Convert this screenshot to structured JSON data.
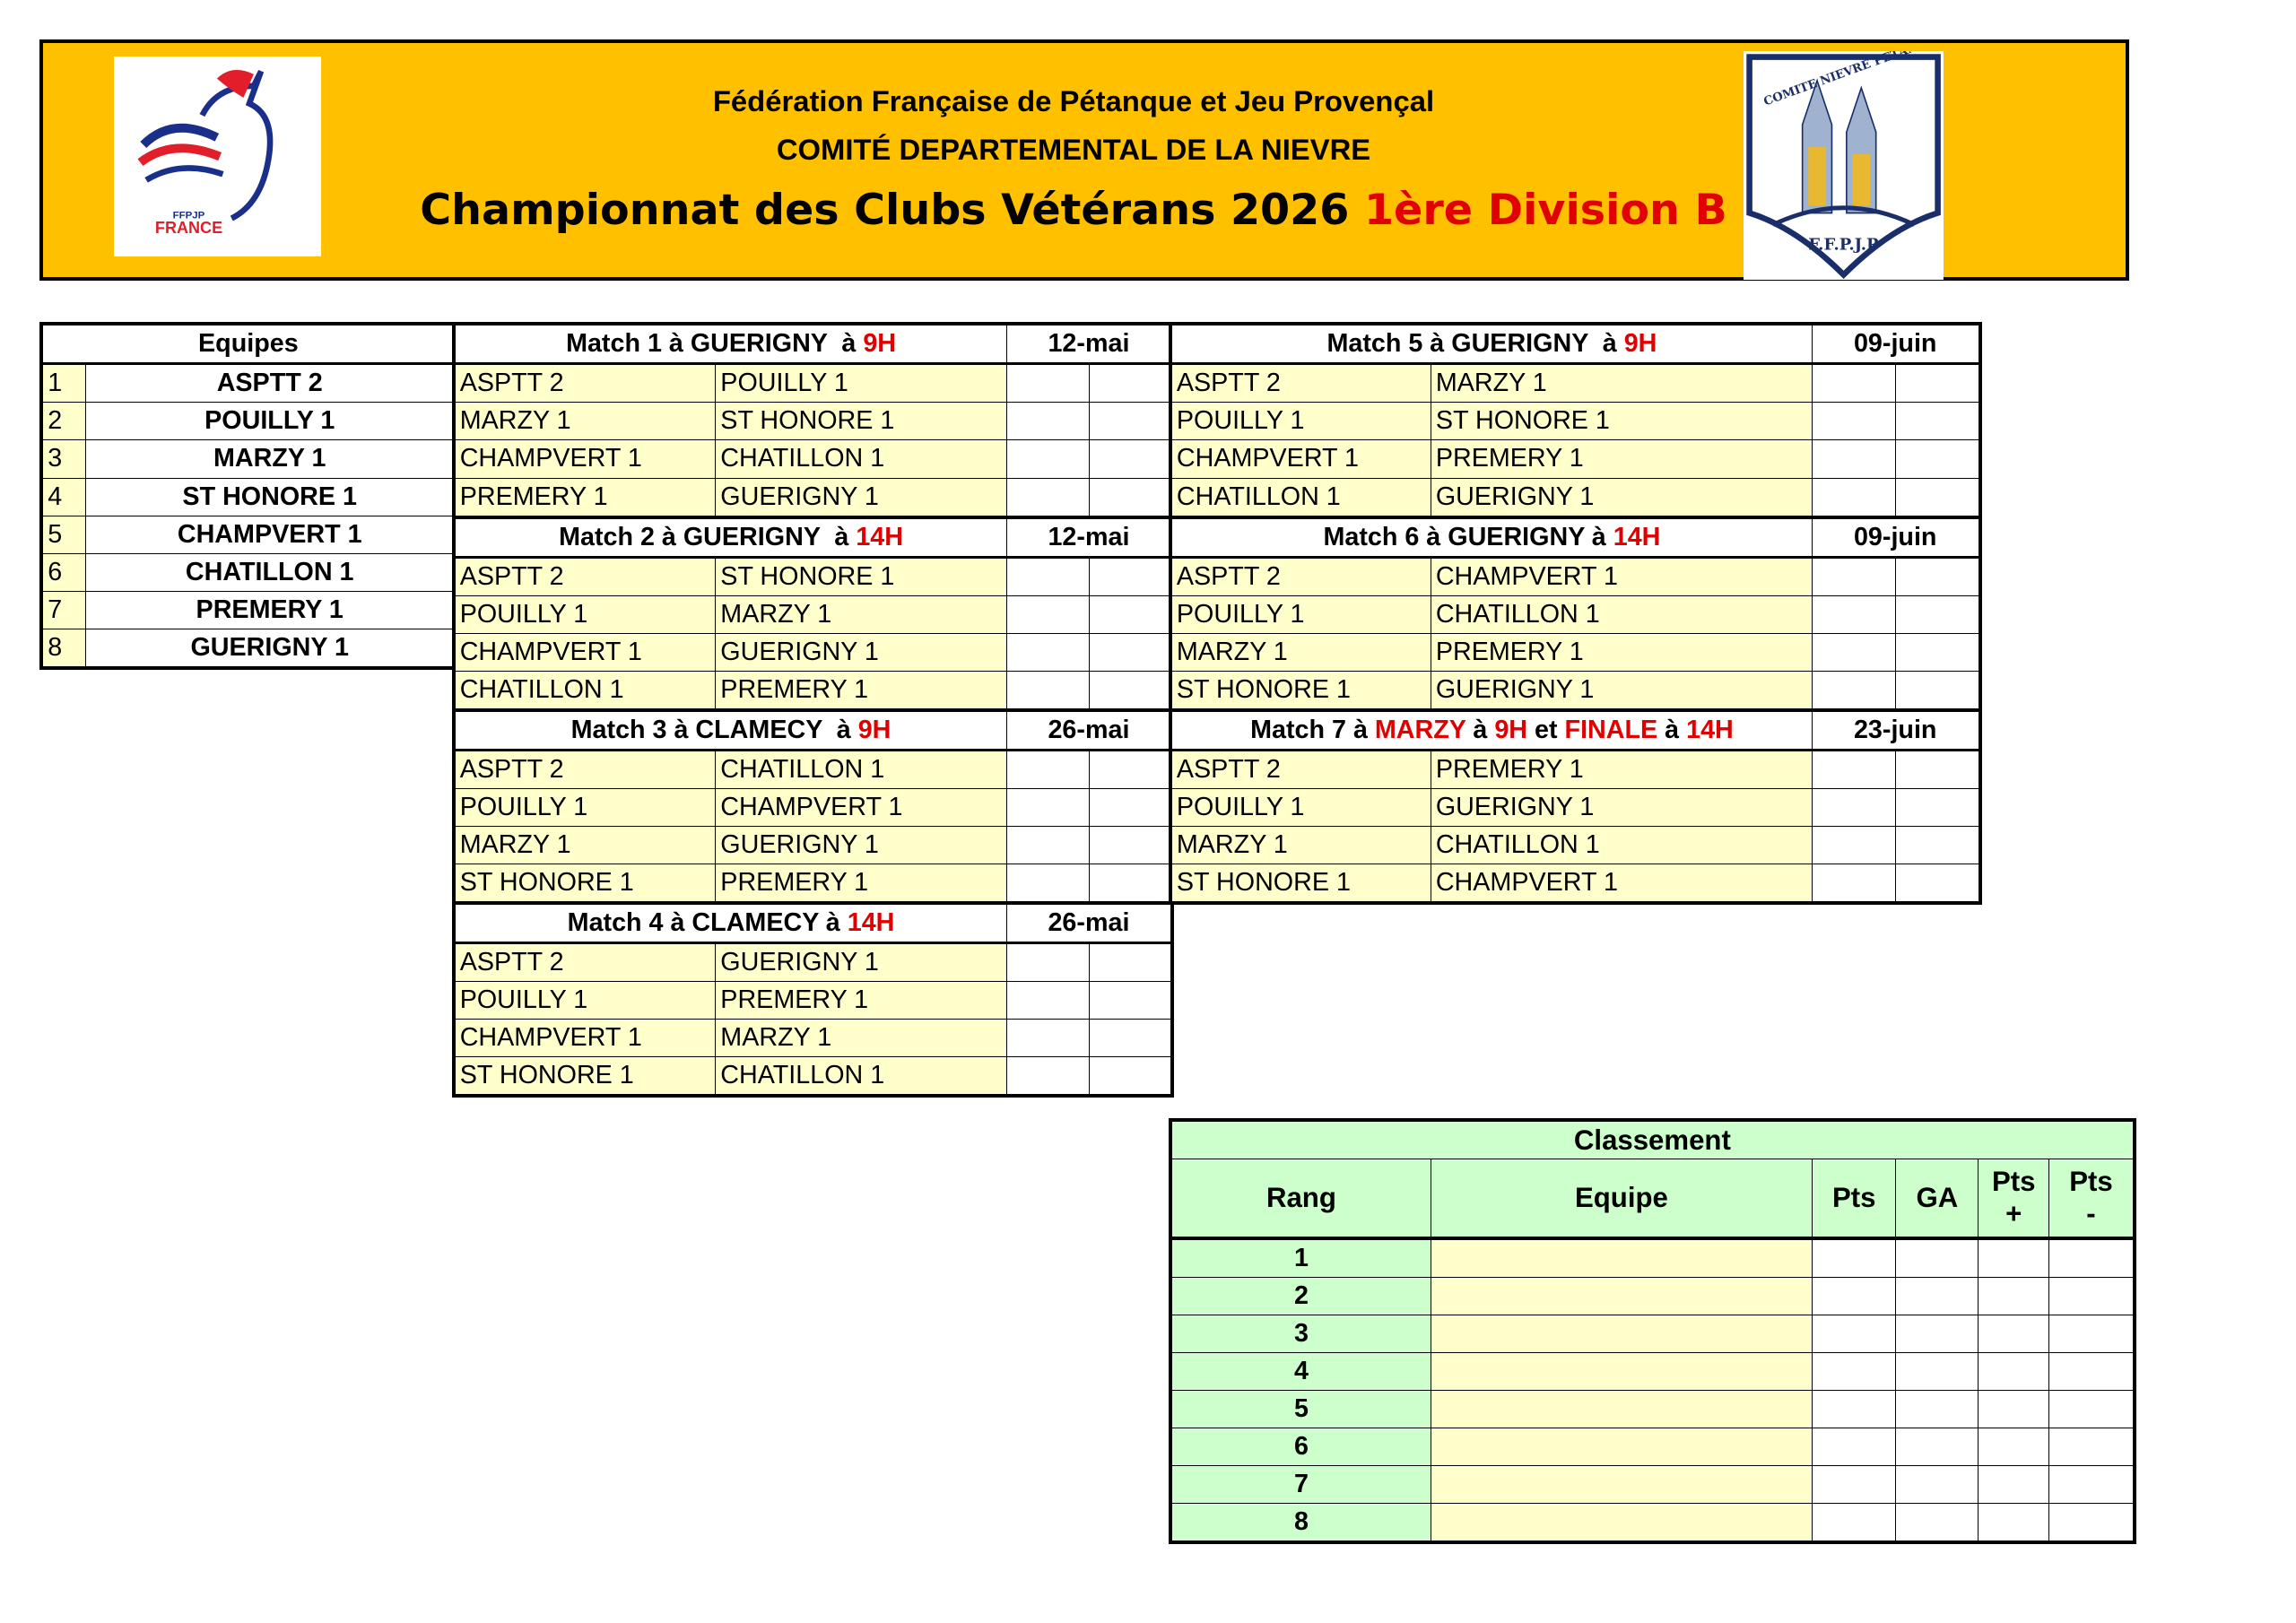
{
  "header": {
    "line1": "Fédération Française de Pétanque et Jeu Provençal",
    "line2": "COMITÉ DEPARTEMENTAL DE LA NIEVRE",
    "title_black": "Championnat des Clubs Vétérans 2026",
    "title_red": "1ère Division B",
    "logo_left": {
      "text": "FFPJP FRANCE",
      "icon": "rooster-logo"
    },
    "logo_right": {
      "text": "COMITE NIEVRE PETANQUE F.F.P.J.P",
      "icon": "shield-logo"
    }
  },
  "colors": {
    "header_bg": "#FFC000",
    "cell_yellow": "#FFFFCC",
    "classement_green": "#CCFFCC",
    "accent_red": "#E00000"
  },
  "teams": {
    "header": "Equipes",
    "items": [
      {
        "num": "1",
        "name": "ASPTT 2"
      },
      {
        "num": "2",
        "name": "POUILLY 1"
      },
      {
        "num": "3",
        "name": "MARZY 1"
      },
      {
        "num": "4",
        "name": "ST HONORE 1"
      },
      {
        "num": "5",
        "name": "CHAMPVERT 1"
      },
      {
        "num": "6",
        "name": "CHATILLON 1"
      },
      {
        "num": "7",
        "name": "PREMERY 1"
      },
      {
        "num": "8",
        "name": "GUERIGNY 1"
      }
    ]
  },
  "matches_left": [
    {
      "title": [
        {
          "t": "Match 1 à GUERIGNY  à ",
          "r": false
        },
        {
          "t": "9H",
          "r": true
        }
      ],
      "date": "12-mai",
      "games": [
        [
          "ASPTT 2",
          "POUILLY 1"
        ],
        [
          "MARZY 1",
          "ST HONORE 1"
        ],
        [
          "CHAMPVERT 1",
          "CHATILLON 1"
        ],
        [
          "PREMERY 1",
          "GUERIGNY 1"
        ]
      ]
    },
    {
      "title": [
        {
          "t": "Match 2 à GUERIGNY  à ",
          "r": false
        },
        {
          "t": "14H",
          "r": true
        }
      ],
      "date": "12-mai",
      "games": [
        [
          "ASPTT 2",
          "ST HONORE 1"
        ],
        [
          "POUILLY 1",
          "MARZY 1"
        ],
        [
          "CHAMPVERT 1",
          "GUERIGNY 1"
        ],
        [
          "CHATILLON 1",
          "PREMERY 1"
        ]
      ]
    },
    {
      "title": [
        {
          "t": "Match 3 à CLAMECY  à ",
          "r": false
        },
        {
          "t": "9H",
          "r": true
        }
      ],
      "date": "26-mai",
      "games": [
        [
          "ASPTT 2",
          "CHATILLON 1"
        ],
        [
          "POUILLY 1",
          "CHAMPVERT 1"
        ],
        [
          "MARZY 1",
          "GUERIGNY 1"
        ],
        [
          "ST HONORE 1",
          "PREMERY 1"
        ]
      ]
    },
    {
      "title": [
        {
          "t": "Match 4 à CLAMECY à ",
          "r": false
        },
        {
          "t": "14H",
          "r": true
        }
      ],
      "date": "26-mai",
      "games": [
        [
          "ASPTT 2",
          "GUERIGNY 1"
        ],
        [
          "POUILLY 1",
          "PREMERY 1"
        ],
        [
          "CHAMPVERT 1",
          "MARZY 1"
        ],
        [
          "ST HONORE 1",
          "CHATILLON 1"
        ]
      ]
    }
  ],
  "matches_right": [
    {
      "title": [
        {
          "t": "Match 5 à GUERIGNY  à ",
          "r": false
        },
        {
          "t": "9H",
          "r": true
        }
      ],
      "date": "09-juin",
      "games": [
        [
          "ASPTT 2",
          "MARZY 1"
        ],
        [
          "POUILLY 1",
          "ST HONORE 1"
        ],
        [
          "CHAMPVERT 1",
          "PREMERY 1"
        ],
        [
          "CHATILLON 1",
          "GUERIGNY 1"
        ]
      ]
    },
    {
      "title": [
        {
          "t": "Match 6 à GUERIGNY à ",
          "r": false
        },
        {
          "t": "14H",
          "r": true
        }
      ],
      "date": "09-juin",
      "games": [
        [
          "ASPTT 2",
          "CHAMPVERT 1"
        ],
        [
          "POUILLY 1",
          "CHATILLON 1"
        ],
        [
          "MARZY 1",
          "PREMERY 1"
        ],
        [
          "ST HONORE 1",
          "GUERIGNY 1"
        ]
      ]
    },
    {
      "title": [
        {
          "t": "Match 7 à ",
          "r": false
        },
        {
          "t": "MARZY",
          "r": true
        },
        {
          "t": " à ",
          "r": false
        },
        {
          "t": "9H",
          "r": true
        },
        {
          "t": " et ",
          "r": false
        },
        {
          "t": "FINALE",
          "r": true
        },
        {
          "t": " à ",
          "r": false
        },
        {
          "t": "14H",
          "r": true
        }
      ],
      "date": "23-juin",
      "games": [
        [
          "ASPTT 2",
          "PREMERY 1"
        ],
        [
          "POUILLY 1",
          "GUERIGNY 1"
        ],
        [
          "MARZY 1",
          "CHATILLON 1"
        ],
        [
          "ST HONORE 1",
          "CHAMPVERT 1"
        ]
      ]
    }
  ],
  "classement": {
    "title": "Classement",
    "columns": {
      "rang": "Rang",
      "equipe": "Equipe",
      "pts": "Pts",
      "ga": "GA",
      "pts_plus_1": "Pts",
      "pts_plus_2": "+",
      "pts_minus_1": "Pts",
      "pts_minus_2": "-"
    },
    "ranks": [
      "1",
      "2",
      "3",
      "4",
      "5",
      "6",
      "7",
      "8"
    ]
  }
}
